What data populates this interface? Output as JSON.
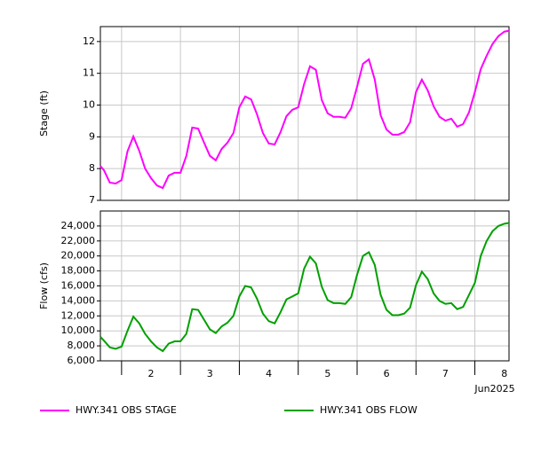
{
  "chart_data": [
    {
      "type": "line",
      "ylabel": "Stage (ft)",
      "x": [
        1.64,
        1.7,
        1.8,
        1.9,
        2.0,
        2.1,
        2.2,
        2.3,
        2.4,
        2.5,
        2.6,
        2.7,
        2.8,
        2.9,
        3.0,
        3.1,
        3.2,
        3.3,
        3.4,
        3.5,
        3.6,
        3.7,
        3.8,
        3.9,
        4.0,
        4.1,
        4.2,
        4.3,
        4.4,
        4.5,
        4.6,
        4.7,
        4.8,
        4.9,
        5.0,
        5.1,
        5.2,
        5.3,
        5.4,
        5.5,
        5.6,
        5.7,
        5.8,
        5.9,
        6.0,
        6.1,
        6.2,
        6.3,
        6.4,
        6.5,
        6.6,
        6.7,
        6.8,
        6.9,
        7.0,
        7.1,
        7.2,
        7.3,
        7.4,
        7.5,
        7.6,
        7.7,
        7.8,
        7.9,
        8.0,
        8.1,
        8.2,
        8.3,
        8.4,
        8.5,
        8.58
      ],
      "series": [
        {
          "name": "HWY.341 OBS STAGE",
          "color": "#ff00ff",
          "values": [
            8.08,
            7.95,
            7.56,
            7.53,
            7.64,
            8.54,
            9.01,
            8.56,
            8.0,
            7.7,
            7.47,
            7.39,
            7.78,
            7.87,
            7.87,
            8.4,
            9.29,
            9.26,
            8.82,
            8.4,
            8.26,
            8.62,
            8.82,
            9.12,
            9.93,
            10.27,
            10.18,
            9.71,
            9.12,
            8.79,
            8.76,
            9.15,
            9.65,
            9.85,
            9.93,
            10.66,
            11.22,
            11.11,
            10.16,
            9.74,
            9.63,
            9.63,
            9.6,
            9.9,
            10.58,
            11.3,
            11.44,
            10.8,
            9.68,
            9.23,
            9.07,
            9.07,
            9.15,
            9.46,
            10.41,
            10.8,
            10.46,
            9.96,
            9.63,
            9.51,
            9.57,
            9.32,
            9.4,
            9.77,
            10.41,
            11.13,
            11.55,
            11.92,
            12.17,
            12.31,
            12.34
          ]
        }
      ],
      "xlim": [
        1.64,
        8.58
      ],
      "xticks": [
        2,
        3,
        4,
        5,
        6,
        7,
        8
      ],
      "ylim": [
        7,
        12.47
      ],
      "yticks": [
        7,
        8,
        9,
        10,
        11,
        12
      ],
      "grid": true
    },
    {
      "type": "line",
      "ylabel": "Flow (cfs)",
      "xlabel": "Jun2025",
      "x": [
        1.64,
        1.7,
        1.8,
        1.9,
        2.0,
        2.1,
        2.2,
        2.3,
        2.4,
        2.5,
        2.6,
        2.7,
        2.8,
        2.9,
        3.0,
        3.1,
        3.2,
        3.3,
        3.4,
        3.5,
        3.6,
        3.7,
        3.8,
        3.9,
        4.0,
        4.1,
        4.2,
        4.3,
        4.4,
        4.5,
        4.6,
        4.7,
        4.8,
        4.9,
        5.0,
        5.1,
        5.2,
        5.3,
        5.4,
        5.5,
        5.6,
        5.7,
        5.8,
        5.9,
        6.0,
        6.1,
        6.2,
        6.3,
        6.4,
        6.5,
        6.6,
        6.7,
        6.8,
        6.9,
        7.0,
        7.1,
        7.2,
        7.3,
        7.4,
        7.5,
        7.6,
        7.7,
        7.8,
        7.9,
        8.0,
        8.1,
        8.2,
        8.3,
        8.4,
        8.5,
        8.58
      ],
      "series": [
        {
          "name": "HWY.341 OBS FLOW",
          "color": "#00a000",
          "values": [
            9200,
            8700,
            7800,
            7600,
            7900,
            10000,
            11900,
            11000,
            9600,
            8600,
            7800,
            7300,
            8300,
            8600,
            8600,
            9600,
            12900,
            12800,
            11500,
            10200,
            9700,
            10600,
            11100,
            12000,
            14600,
            16000,
            15800,
            14300,
            12300,
            11300,
            11000,
            12500,
            14200,
            14600,
            15000,
            18300,
            19900,
            19000,
            15900,
            14100,
            13700,
            13700,
            13600,
            14500,
            17500,
            20000,
            20500,
            18800,
            14800,
            12800,
            12100,
            12100,
            12300,
            13100,
            16100,
            17900,
            16900,
            15000,
            14000,
            13600,
            13700,
            12900,
            13200,
            14800,
            16400,
            20000,
            22000,
            23300,
            24000,
            24300,
            24400
          ]
        }
      ],
      "xlim": [
        1.64,
        8.58
      ],
      "xticks": [
        2,
        3,
        4,
        5,
        6,
        7,
        8
      ],
      "ylim": [
        6000,
        26000
      ],
      "yticks": [
        {
          "value": 6000,
          "label": "6,000"
        },
        {
          "value": 8000,
          "label": "8,000"
        },
        {
          "value": 10000,
          "label": "10,000"
        },
        {
          "value": 12000,
          "label": "12,000"
        },
        {
          "value": 14000,
          "label": "14,000"
        },
        {
          "value": 16000,
          "label": "16,000"
        },
        {
          "value": 18000,
          "label": "18,000"
        },
        {
          "value": 20000,
          "label": "20,000"
        },
        {
          "value": 22000,
          "label": "22,000"
        },
        {
          "value": 24000,
          "label": "24,000"
        }
      ],
      "grid": true
    }
  ]
}
